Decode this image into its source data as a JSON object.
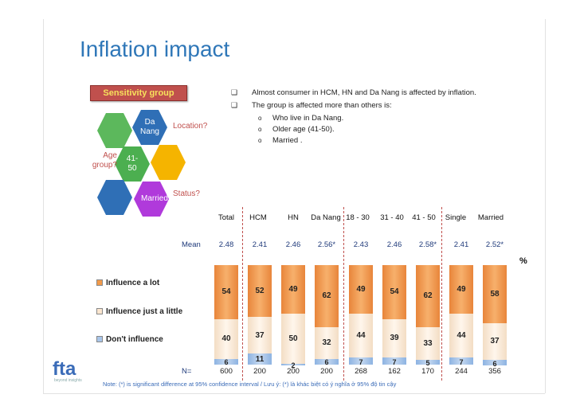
{
  "title": "Inflation impact",
  "diagram": {
    "header": "Sensitivity group",
    "hexes": [
      {
        "text": "",
        "color": "#5cb85c"
      },
      {
        "text": "Da Nang",
        "color": "#2f6fb6"
      },
      {
        "text": "Age group?",
        "color": "#fff"
      },
      {
        "text": "41-50",
        "color": "#4caf50"
      },
      {
        "text": "",
        "color": "#f5b400"
      },
      {
        "text": "",
        "color": "#2f6fb6"
      },
      {
        "text": "Married",
        "color": "#b03adb"
      }
    ],
    "location_label": "Location?",
    "age_label": "Age group?",
    "status_label": "Status?",
    "hex_da_nang": "Da Nang",
    "hex_41_50": "41-50",
    "hex_married": "Married",
    "age_text": "Age group?"
  },
  "bullets": {
    "b1": "Almost consumer in HCM, HN and Da Nang is affected by inflation.",
    "b2": "The group is affected more than others is:",
    "subs": [
      "Who live in Da Nang.",
      "Older age (41-50).",
      "Married ."
    ]
  },
  "legend": {
    "lot": "Influence a lot",
    "little": "Influence just a little",
    "none": "Don't influence"
  },
  "labels": {
    "mean": "Mean",
    "n": "N=",
    "percent": "%"
  },
  "chart_data": {
    "type": "bar",
    "stacked": true,
    "categories": [
      "Total",
      "HCM",
      "HN",
      "Da Nang",
      "18 - 30",
      "31 - 40",
      "41 - 50",
      "Single",
      "Married"
    ],
    "series": [
      {
        "name": "Influence a lot",
        "values": [
          54,
          52,
          49,
          62,
          49,
          54,
          62,
          49,
          58
        ]
      },
      {
        "name": "Influence just a little",
        "values": [
          40,
          37,
          50,
          32,
          44,
          39,
          33,
          44,
          37
        ]
      },
      {
        "name": "Don't influence",
        "values": [
          6,
          11,
          2,
          6,
          7,
          7,
          5,
          7,
          6
        ]
      }
    ],
    "mean": [
      "2.48",
      "2.41",
      "2.46",
      "2.56*",
      "2.43",
      "2.46",
      "2.58*",
      "2.41",
      "2.52*"
    ],
    "n": [
      "600",
      "200",
      "200",
      "200",
      "268",
      "162",
      "170",
      "244",
      "356"
    ],
    "colors": {
      "lot": "#f29a4a",
      "little": "#fbe6cf",
      "none": "#a9c6ea"
    }
  },
  "note": "Note: (*) is significant difference at 95% confidence interval / Lưu ý: (*) là khác biệt có ý nghĩa ở 95% độ tin cậy",
  "logo": {
    "text": "fta",
    "sub": "beyond insights"
  }
}
